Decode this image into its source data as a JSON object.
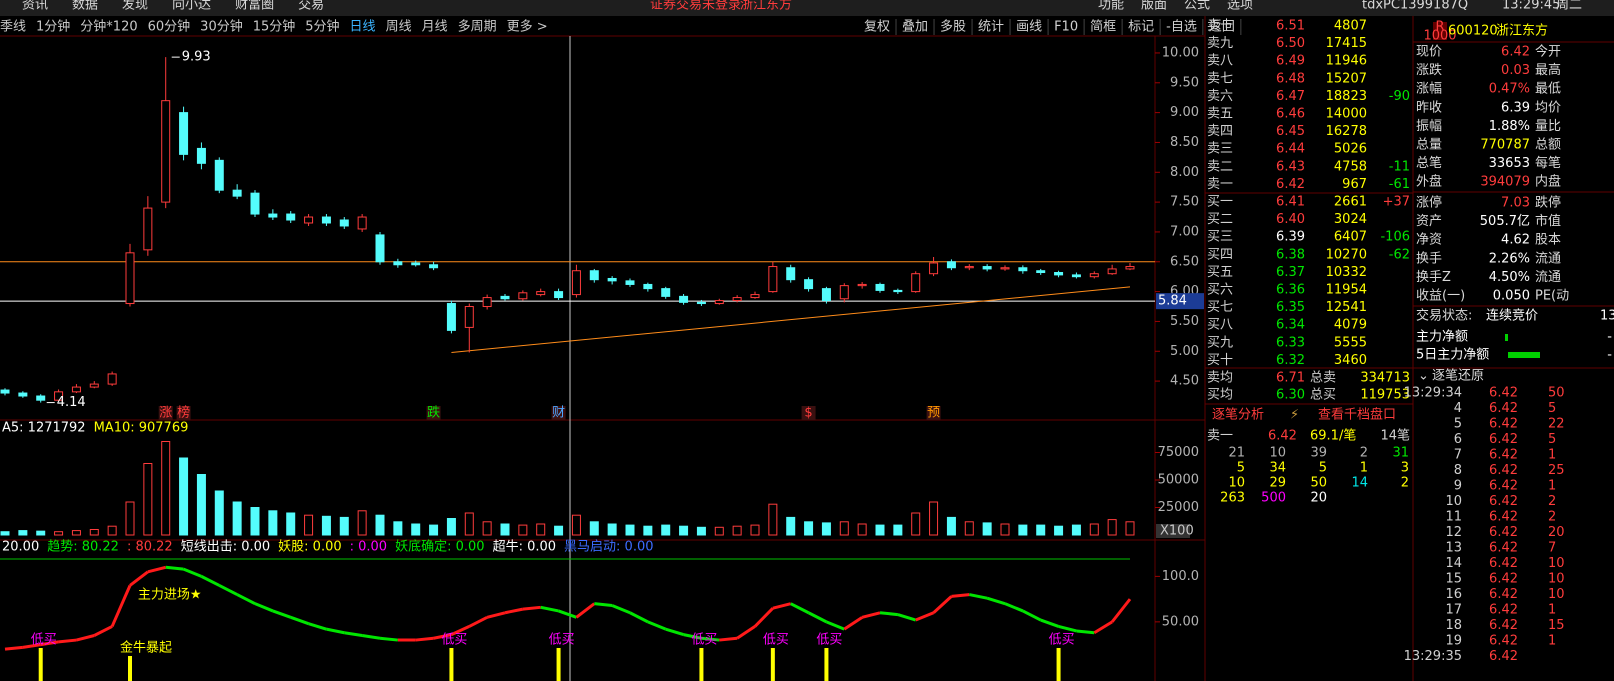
{
  "menu": {
    "items": [
      "资讯",
      "数据",
      "发现",
      "向小达",
      "财富圈",
      "交易"
    ],
    "notice": "证券交易未登录",
    "stock": "浙江东方",
    "right": [
      "功能",
      "版面",
      "公式",
      "选项"
    ],
    "user": "tdxPC1399187Q",
    "time": "13:29:45",
    "weekday": "周二"
  },
  "toolbar": {
    "periods": [
      "季线",
      "1分钟",
      "分钟*120",
      "60分钟",
      "30分钟",
      "15分钟",
      "5分钟",
      "日线",
      "周线",
      "月线",
      "多周期",
      "更多 >"
    ],
    "selected": "日线",
    "tools": [
      "复权",
      "叠加",
      "多股",
      "统计",
      "画线",
      "F10",
      "简框",
      "标记",
      "-自选",
      "返回"
    ]
  },
  "chart_data": [
    {
      "type": "candlestick",
      "up_color": "#ff3c3c",
      "down_color": "#54fcfc",
      "series": {
        "open": [
          4.35,
          4.3,
          4.25,
          4.18,
          4.32,
          4.4,
          4.45,
          5.8,
          6.7,
          7.5,
          9.0,
          8.4,
          8.2,
          7.7,
          7.65,
          7.3,
          7.3,
          7.15,
          7.25,
          7.2,
          7.05,
          6.95,
          6.5,
          6.48,
          6.45,
          5.8,
          5.4,
          5.75,
          5.92,
          5.88,
          5.95,
          6.0,
          5.95,
          6.35,
          6.22,
          6.18,
          6.12,
          6.05,
          5.92,
          5.82,
          5.8,
          5.85,
          5.9,
          6.0,
          6.4,
          6.2,
          6.05,
          5.88,
          6.1,
          6.12,
          6.02,
          6.0,
          6.3,
          6.5,
          6.4,
          6.42,
          6.38,
          6.4,
          6.35,
          6.32,
          6.28,
          6.25,
          6.3,
          6.38
        ],
        "high": [
          4.38,
          4.33,
          4.28,
          4.36,
          4.45,
          4.5,
          4.66,
          6.8,
          7.6,
          9.93,
          9.1,
          8.5,
          8.25,
          7.8,
          7.7,
          7.38,
          7.35,
          7.3,
          7.3,
          7.25,
          7.3,
          7.0,
          6.55,
          6.52,
          6.5,
          5.85,
          5.8,
          5.95,
          5.96,
          6.02,
          6.05,
          6.05,
          6.45,
          6.38,
          6.26,
          6.22,
          6.15,
          6.08,
          5.96,
          5.86,
          5.88,
          5.94,
          6.0,
          6.5,
          6.45,
          6.24,
          6.08,
          6.14,
          6.16,
          6.15,
          6.05,
          6.34,
          6.58,
          6.54,
          6.46,
          6.46,
          6.44,
          6.44,
          6.38,
          6.35,
          6.32,
          6.34,
          6.45,
          6.48
        ],
        "low": [
          4.26,
          4.22,
          4.14,
          4.16,
          4.3,
          4.38,
          4.42,
          5.75,
          6.6,
          7.4,
          8.2,
          8.05,
          7.65,
          7.55,
          7.25,
          7.2,
          7.15,
          7.1,
          7.1,
          7.05,
          7.0,
          6.45,
          6.4,
          6.42,
          6.36,
          5.3,
          4.98,
          5.7,
          5.85,
          5.85,
          5.92,
          5.86,
          5.9,
          6.15,
          6.12,
          6.08,
          6.0,
          5.88,
          5.78,
          5.76,
          5.78,
          5.82,
          5.88,
          5.98,
          6.15,
          6.0,
          5.8,
          5.82,
          6.05,
          5.98,
          5.96,
          5.98,
          6.26,
          6.36,
          6.36,
          6.34,
          6.35,
          6.3,
          6.28,
          6.24,
          6.22,
          6.22,
          6.28,
          6.36
        ],
        "close": [
          4.3,
          4.25,
          4.18,
          4.32,
          4.4,
          4.45,
          4.62,
          6.65,
          7.4,
          9.2,
          8.3,
          8.15,
          7.7,
          7.6,
          7.3,
          7.25,
          7.2,
          7.25,
          7.15,
          7.1,
          7.25,
          6.5,
          6.45,
          6.45,
          6.4,
          5.35,
          5.75,
          5.9,
          5.88,
          5.98,
          6.0,
          5.9,
          6.35,
          6.2,
          6.18,
          6.12,
          6.05,
          5.92,
          5.82,
          5.8,
          5.85,
          5.9,
          5.95,
          6.42,
          6.2,
          6.05,
          5.85,
          6.1,
          6.12,
          6.02,
          6.0,
          6.3,
          6.48,
          6.4,
          6.42,
          6.38,
          6.4,
          6.35,
          6.32,
          6.28,
          6.25,
          6.3,
          6.38,
          6.42
        ]
      },
      "ylim": [
        4.2,
        10.15
      ],
      "yticks": [
        {
          "value": 4.5,
          "label": "4.50"
        },
        {
          "value": 5,
          "label": "5.00"
        },
        {
          "value": 5.5,
          "label": "5.50"
        },
        {
          "value": 6,
          "label": "6.00"
        },
        {
          "value": 6.5,
          "label": "6.50"
        },
        {
          "value": 7,
          "label": "7.00"
        },
        {
          "value": 7.5,
          "label": "7.50"
        },
        {
          "value": 8,
          "label": "8.00"
        },
        {
          "value": 8.5,
          "label": "8.50"
        },
        {
          "value": 9,
          "label": "9.00"
        },
        {
          "value": 9.5,
          "label": "9.50"
        },
        {
          "value": 10,
          "label": "10.00"
        }
      ],
      "annotations": [
        {
          "index": 9,
          "value": 9.93
        },
        {
          "index": 2,
          "value": 4.14
        }
      ],
      "reference_lines": [
        {
          "value": 6.5,
          "color": "#ff8c1a"
        },
        {
          "value": 5.84,
          "color": "#ffffff"
        }
      ],
      "trendline": {
        "x": [
          25,
          63
        ],
        "y": [
          4.98,
          6.08
        ],
        "color": "#ff8c1a"
      },
      "events": [
        {
          "index": 9,
          "text": "涨",
          "color": "#ff3c3c"
        },
        {
          "index": 10,
          "text": "榜",
          "color": "#ff3c3c"
        },
        {
          "index": 24,
          "text": "跌",
          "color": "#00e600"
        },
        {
          "index": 31,
          "text": "财",
          "color": "#4da6ff"
        },
        {
          "index": 45,
          "text": "$",
          "color": "#ff3c3c"
        },
        {
          "index": 52,
          "text": "预",
          "color": "#ff9900"
        }
      ]
    },
    {
      "type": "bar",
      "up_color": "#ff3c3c",
      "down_color": "#54fcfc",
      "header": [
        {
          "text": "A5: 1271792",
          "color": "#ffffff"
        },
        {
          "text": "MA10: 907769",
          "color": "#ffff00"
        }
      ],
      "values": [
        3000,
        4000,
        3500,
        3000,
        4000,
        5000,
        8000,
        30000,
        65000,
        85000,
        70000,
        55000,
        40000,
        30000,
        25000,
        22000,
        20000,
        18000,
        17000,
        16000,
        22000,
        18000,
        12000,
        10000,
        9000,
        15000,
        20000,
        12000,
        10000,
        9000,
        10000,
        8000,
        18000,
        12000,
        10000,
        9000,
        8000,
        9000,
        8000,
        7000,
        7000,
        8000,
        9000,
        28000,
        16000,
        12000,
        11000,
        12000,
        10000,
        9000,
        9000,
        20000,
        30000,
        16000,
        12000,
        11000,
        10000,
        9000,
        9000,
        8000,
        9000,
        10000,
        14000,
        12000
      ],
      "ylim": [
        0,
        90000
      ],
      "yticks": [
        25000,
        50000,
        75000
      ],
      "scale_label": "X100"
    },
    {
      "type": "line",
      "up_color": "#ff1a1a",
      "down_color": "#00e600",
      "header": [
        {
          "text": "20.00",
          "color": "#ffffff"
        },
        {
          "text": "趋势: 80.22",
          "color": "#00e600"
        },
        {
          "text": ": 80.22",
          "color": "#ff3c3c"
        },
        {
          "text": "短线出击: 0.00",
          "color": "#ffffff"
        },
        {
          "text": "妖股: 0.00",
          "color": "#ffff00"
        },
        {
          "text": ": 0.00",
          "color": "#ff00ff"
        },
        {
          "text": "妖底确定: 0.00",
          "color": "#00e600"
        },
        {
          "text": "超牛: 0.00",
          "color": "#ffffff"
        },
        {
          "text": "黑马启动: 0.00",
          "color": "#3c6cff"
        }
      ],
      "values": [
        20,
        22,
        25,
        28,
        30,
        35,
        45,
        90,
        105,
        110,
        108,
        100,
        90,
        80,
        70,
        62,
        55,
        48,
        42,
        38,
        35,
        32,
        30,
        30,
        32,
        36,
        45,
        55,
        60,
        64,
        66,
        62,
        55,
        70,
        68,
        60,
        50,
        42,
        36,
        32,
        30,
        32,
        45,
        65,
        70,
        60,
        50,
        42,
        55,
        60,
        58,
        52,
        60,
        78,
        80,
        76,
        70,
        62,
        52,
        45,
        40,
        38,
        50,
        75
      ],
      "ylim": [
        -15,
        118
      ],
      "yticks": [
        {
          "value": 50,
          "label": "50.00"
        },
        {
          "value": 100,
          "label": "100.0"
        }
      ],
      "annotations": [
        {
          "index": 2,
          "text": "低买",
          "color": "#ff00ff"
        },
        {
          "index": 7,
          "text": "金牛暴起",
          "color": "#ffff00"
        },
        {
          "index": 8,
          "text": "主力进场★",
          "color": "#ffff00"
        },
        {
          "index": 25,
          "text": "低买",
          "color": "#ff00ff"
        },
        {
          "index": 31,
          "text": "低买",
          "color": "#ff00ff"
        },
        {
          "index": 39,
          "text": "低买",
          "color": "#ff00ff"
        },
        {
          "index": 43,
          "text": "低买",
          "color": "#ff00ff"
        },
        {
          "index": 46,
          "text": "低买",
          "color": "#ff00ff"
        },
        {
          "index": 59,
          "text": "低买",
          "color": "#ff00ff"
        }
      ]
    }
  ],
  "order_book": {
    "reference": "6.39",
    "asks": [
      {
        "label": "卖十",
        "price": "6.51",
        "volume": "4807"
      },
      {
        "label": "卖九",
        "price": "6.50",
        "volume": "17415"
      },
      {
        "label": "卖八",
        "price": "6.49",
        "volume": "11946"
      },
      {
        "label": "卖七",
        "price": "6.48",
        "volume": "15207"
      },
      {
        "label": "卖六",
        "price": "6.47",
        "volume": "18823",
        "change": "-90"
      },
      {
        "label": "卖五",
        "price": "6.46",
        "volume": "14000"
      },
      {
        "label": "卖四",
        "price": "6.45",
        "volume": "16278"
      },
      {
        "label": "卖三",
        "price": "6.44",
        "volume": "5026"
      },
      {
        "label": "卖二",
        "price": "6.43",
        "volume": "4758",
        "change": "-11"
      },
      {
        "label": "卖一",
        "price": "6.42",
        "volume": "967",
        "change": "-61"
      }
    ],
    "bids": [
      {
        "label": "买一",
        "price": "6.41",
        "volume": "2661",
        "change": "+37"
      },
      {
        "label": "买二",
        "price": "6.40",
        "volume": "3024"
      },
      {
        "label": "买三",
        "price": "6.39",
        "volume": "6407",
        "change": "-106"
      },
      {
        "label": "买四",
        "price": "6.38",
        "volume": "10270",
        "change": "-62"
      },
      {
        "label": "买五",
        "price": "6.37",
        "volume": "10332"
      },
      {
        "label": "买六",
        "price": "6.36",
        "volume": "11954"
      },
      {
        "label": "买七",
        "price": "6.35",
        "volume": "12541"
      },
      {
        "label": "买八",
        "price": "6.34",
        "volume": "4079"
      },
      {
        "label": "买九",
        "price": "6.33",
        "volume": "5555"
      },
      {
        "label": "买十",
        "price": "6.32",
        "volume": "3460"
      }
    ],
    "averages": [
      {
        "label": "卖均",
        "price": "6.71",
        "total_label": "总卖",
        "total": "334713"
      },
      {
        "label": "买均",
        "price": "6.30",
        "total_label": "总买",
        "total": "119753"
      }
    ],
    "tabs": [
      "逐笔分析",
      "查看千档盘口"
    ],
    "analysis": {
      "side": "卖一",
      "price": "6.42",
      "avg": "69.1/笔",
      "count": "14笔",
      "rows": [
        {
          "cells": [
            "21",
            "10",
            "39",
            "2",
            "31"
          ],
          "colors": [
            "#b0b0b0",
            "#b0b0b0",
            "#b0b0b0",
            "#b0b0b0",
            "#00e600"
          ]
        },
        {
          "cells": [
            "5",
            "34",
            "5",
            "1",
            "3"
          ],
          "colors": [
            "#ffff00",
            "#ffff00",
            "#ffff00",
            "#ffff00",
            "#ffff00"
          ]
        },
        {
          "cells": [
            "10",
            "29",
            "50",
            "14",
            "2"
          ],
          "colors": [
            "#ffff00",
            "#ffff00",
            "#ffff00",
            "#00e6e6",
            "#ffff00"
          ]
        },
        {
          "cells": [
            "263",
            "500",
            "20"
          ],
          "colors": [
            "#ffff00",
            "#ff00ff",
            "#ffffff"
          ]
        }
      ]
    }
  },
  "quote": {
    "code": "600120",
    "name": "浙江东方",
    "badge": "R",
    "badge_sub": "1000",
    "rows": [
      {
        "label": "现价",
        "value": "6.42",
        "right": "今开",
        "color": "#ff3c3c"
      },
      {
        "label": "涨跌",
        "value": "0.03",
        "right": "最高",
        "color": "#ff3c3c"
      },
      {
        "label": "涨幅",
        "value": "0.47%",
        "right": "最低",
        "color": "#ff3c3c"
      },
      {
        "label": "昨收",
        "value": "6.39",
        "right": "均价",
        "color": "#ffffff"
      },
      {
        "label": "振幅",
        "value": "1.88%",
        "right": "量比",
        "color": "#ffffff"
      },
      {
        "label": "总量",
        "value": "770787",
        "right": "总额",
        "color": "#ffff00"
      },
      {
        "label": "总笔",
        "value": "33653",
        "right": "每笔",
        "color": "#ffffff"
      },
      {
        "label": "外盘",
        "value": "394079",
        "right": "内盘",
        "color": "#ff3c3c"
      }
    ],
    "rows2": [
      {
        "label": "涨停",
        "value": "7.03",
        "right": "跌停",
        "color": "#ff3c3c"
      },
      {
        "label": "资产",
        "value": "505.7亿",
        "right": "市值",
        "color": "#ffffff"
      },
      {
        "label": "净资",
        "value": "4.62",
        "right": "股本",
        "color": "#ffffff"
      },
      {
        "label": "换手",
        "value": "2.26%",
        "right": "流通",
        "color": "#ffffff"
      },
      {
        "label": "换手Z",
        "value": "4.50%",
        "right": "流通",
        "color": "#ffffff"
      },
      {
        "label": "收益(一)",
        "value": "0.050",
        "right": "PE(动",
        "color": "#ffffff"
      }
    ],
    "status": {
      "label": "交易状态:",
      "value": "连续竞价",
      "extra": "13"
    },
    "flows": [
      {
        "label": "主力净额",
        "value": "-"
      },
      {
        "label": "5日主力净额",
        "value": "-"
      }
    ]
  },
  "ticks": {
    "title": "逐笔还原",
    "rows": [
      {
        "time": "13:29:34",
        "price": "6.42",
        "volume": "50"
      },
      {
        "time": "4",
        "price": "6.42",
        "volume": "5"
      },
      {
        "time": "5",
        "price": "6.42",
        "volume": "22"
      },
      {
        "time": "6",
        "price": "6.42",
        "volume": "5"
      },
      {
        "time": "7",
        "price": "6.42",
        "volume": "1"
      },
      {
        "time": "8",
        "price": "6.42",
        "volume": "25"
      },
      {
        "time": "9",
        "price": "6.42",
        "volume": "1"
      },
      {
        "time": "10",
        "price": "6.42",
        "volume": "2"
      },
      {
        "time": "11",
        "price": "6.42",
        "volume": "2"
      },
      {
        "time": "12",
        "price": "6.42",
        "volume": "20"
      },
      {
        "time": "13",
        "price": "6.42",
        "volume": "7"
      },
      {
        "time": "14",
        "price": "6.42",
        "volume": "10"
      },
      {
        "time": "15",
        "price": "6.42",
        "volume": "10"
      },
      {
        "time": "16",
        "price": "6.42",
        "volume": "10"
      },
      {
        "time": "17",
        "price": "6.42",
        "volume": "1"
      },
      {
        "time": "18",
        "price": "6.42",
        "volume": "15"
      },
      {
        "time": "19",
        "price": "6.42",
        "volume": "1"
      },
      {
        "time": "13:29:35",
        "price": "6.42"
      }
    ]
  }
}
